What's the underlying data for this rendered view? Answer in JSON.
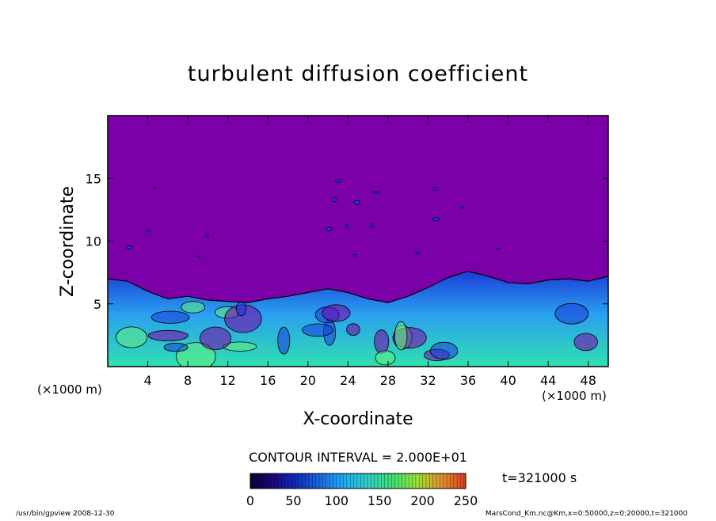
{
  "chart_data": {
    "type": "heatmap",
    "title": "turbulent diffusion coefficient",
    "xlabel": "X-coordinate",
    "ylabel": "Z-coordinate",
    "x_unit_label": "(×1000 m)",
    "x_unit_label_right": "(×1000 m)",
    "xlim": [
      0,
      50
    ],
    "ylim": [
      0,
      20
    ],
    "x_ticks": [
      4,
      8,
      12,
      16,
      20,
      24,
      28,
      32,
      36,
      40,
      44,
      48
    ],
    "y_ticks": [
      5,
      10,
      15
    ],
    "contour_interval": "CONTOUR INTERVAL = 2.000E+01",
    "time_label": "t=321000 s",
    "colorbar": {
      "min": 0,
      "max": 250,
      "ticks": [
        0,
        50,
        100,
        150,
        200,
        250
      ],
      "colors": [
        "#0a0033",
        "#1a0a80",
        "#1030c0",
        "#1a70e0",
        "#20b0f0",
        "#30d0c0",
        "#40e070",
        "#a0e030",
        "#e09030",
        "#e04020"
      ]
    },
    "field_colors": {
      "background": "#7b00a8",
      "low": "#1a3bd8",
      "mid": "#2aa0f0",
      "high": "#30e0b0",
      "peak": "#60f080"
    },
    "boundary_profile": {
      "x": [
        0,
        2,
        4,
        6,
        8,
        10,
        12,
        14,
        16,
        18,
        20,
        22,
        24,
        26,
        28,
        30,
        32,
        34,
        36,
        38,
        40,
        42,
        44,
        46,
        48,
        50
      ],
      "z": [
        7.0,
        6.8,
        6.0,
        5.4,
        5.6,
        5.3,
        5.2,
        5.1,
        5.4,
        5.6,
        5.9,
        6.2,
        5.9,
        5.4,
        5.1,
        5.6,
        6.3,
        7.1,
        7.6,
        7.2,
        6.7,
        6.6,
        6.9,
        7.0,
        6.8,
        7.2
      ]
    },
    "footer_left": "/usr/bin/gpview   2008-12-30",
    "footer_right": "MarsCond_Km.nc@Km,x=0:50000,z=0:20000,t=321000"
  }
}
